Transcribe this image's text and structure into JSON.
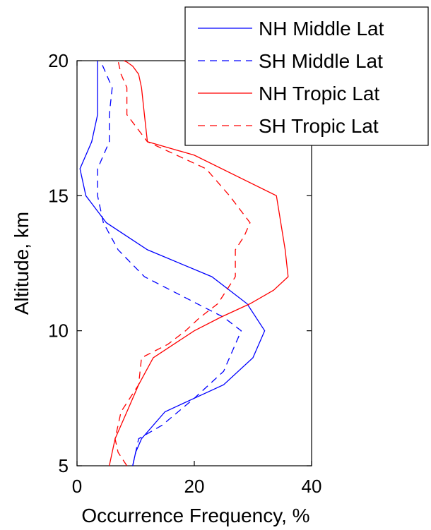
{
  "chart_data": {
    "type": "line",
    "title": "",
    "xlabel": "Occurrence Frequency, %",
    "ylabel": "Altitude, km",
    "xlim": [
      0,
      40
    ],
    "ylim": [
      5,
      20
    ],
    "xticks": [
      0,
      20,
      40
    ],
    "yticks": [
      5,
      10,
      15,
      20
    ],
    "xtick_labels": [
      "0",
      "20",
      "40"
    ],
    "ytick_labels": [
      "5",
      "10",
      "15",
      "20"
    ],
    "grid": false,
    "legend_position": "top-right",
    "series": [
      {
        "name": "NH Middle Lat",
        "color": "#0000ff",
        "dash": "solid",
        "x": [
          9.5,
          10,
          11,
          15,
          20,
          25,
          30,
          32,
          29,
          23,
          12,
          5,
          1.5,
          0.5,
          2.5,
          3.5,
          3.5,
          3.5
        ],
        "y": [
          5,
          5.5,
          6,
          7,
          7.5,
          8,
          9,
          10,
          11,
          12,
          13,
          14,
          15,
          16,
          17,
          18,
          19,
          20
        ]
      },
      {
        "name": "SH Middle Lat",
        "color": "#0000ff",
        "dash": "dashed",
        "x": [
          9.5,
          10,
          10.5,
          14.5,
          20,
          25,
          26,
          28,
          25,
          20.5,
          11.5,
          7,
          4.5,
          3.5,
          3.5,
          5.5,
          5.5,
          6,
          4
        ],
        "y": [
          5,
          5.5,
          6,
          6.5,
          7.5,
          8.5,
          9,
          10,
          10.5,
          11,
          12,
          13,
          14,
          15,
          16,
          17,
          18,
          19,
          20
        ]
      },
      {
        "name": "NH Tropic Lat",
        "color": "#ff0000",
        "dash": "solid",
        "x": [
          5.5,
          6.5,
          8.5,
          10.5,
          13,
          16.5,
          20,
          24.5,
          29.5,
          33.5,
          36,
          35.5,
          34,
          20,
          12,
          11.5,
          11,
          10.5,
          9.5,
          8.5,
          8
        ],
        "y": [
          5,
          6,
          7,
          8,
          9,
          9.5,
          10,
          10.5,
          11,
          11.5,
          12,
          13,
          15,
          16.5,
          17,
          18,
          19,
          19.5,
          19.8,
          19.95,
          20
        ]
      },
      {
        "name": "SH Tropic Lat",
        "color": "#ff0000",
        "dash": "dashed",
        "x": [
          8.5,
          7,
          6.5,
          7.5,
          10.5,
          11,
          15.5,
          18.5,
          21,
          24,
          27,
          27,
          28.5,
          29.5,
          26,
          22,
          12,
          8.5,
          8.5,
          7.5,
          7
        ],
        "y": [
          5,
          5.5,
          6,
          7,
          8,
          9,
          9.5,
          10,
          10.5,
          11,
          12,
          13,
          13.5,
          14,
          15,
          16,
          17,
          18,
          19,
          19.5,
          20
        ]
      }
    ]
  }
}
